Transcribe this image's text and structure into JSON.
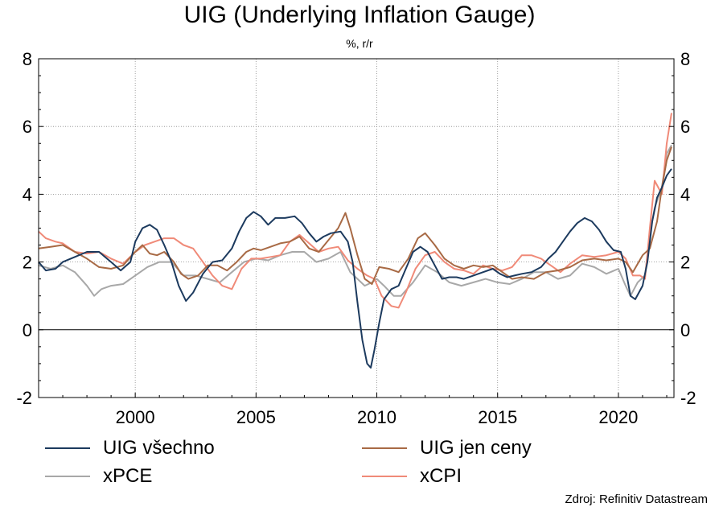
{
  "chart_data": {
    "type": "line",
    "title": "UIG (Underlying Inflation Gauge)",
    "subtitle": "%, r/r",
    "source": "Zdroj: Refinitiv Datastream",
    "xlim": [
      1996.0,
      2022.3
    ],
    "ylim": [
      -2,
      8
    ],
    "y_ticks": [
      -2,
      0,
      2,
      4,
      6,
      8
    ],
    "x_ticks": [
      2000,
      2005,
      2010,
      2015,
      2020
    ],
    "grid": true,
    "legend_position": "bottom",
    "series": [
      {
        "name": "UIG všechno",
        "color": "#1c3a5e",
        "points": [
          [
            1996.0,
            2.0
          ],
          [
            1996.3,
            1.75
          ],
          [
            1996.7,
            1.8
          ],
          [
            1997.0,
            2.0
          ],
          [
            1997.5,
            2.15
          ],
          [
            1998.0,
            2.3
          ],
          [
            1998.5,
            2.3
          ],
          [
            1999.0,
            2.0
          ],
          [
            1999.4,
            1.75
          ],
          [
            1999.8,
            2.0
          ],
          [
            2000.0,
            2.6
          ],
          [
            2000.3,
            3.0
          ],
          [
            2000.6,
            3.1
          ],
          [
            2000.9,
            2.95
          ],
          [
            2001.2,
            2.5
          ],
          [
            2001.5,
            2.0
          ],
          [
            2001.8,
            1.3
          ],
          [
            2002.1,
            0.85
          ],
          [
            2002.4,
            1.1
          ],
          [
            2002.8,
            1.65
          ],
          [
            2003.2,
            2.0
          ],
          [
            2003.6,
            2.05
          ],
          [
            2004.0,
            2.4
          ],
          [
            2004.3,
            2.9
          ],
          [
            2004.6,
            3.3
          ],
          [
            2004.9,
            3.48
          ],
          [
            2005.2,
            3.35
          ],
          [
            2005.5,
            3.1
          ],
          [
            2005.8,
            3.3
          ],
          [
            2006.2,
            3.3
          ],
          [
            2006.6,
            3.35
          ],
          [
            2006.9,
            3.15
          ],
          [
            2007.2,
            2.85
          ],
          [
            2007.5,
            2.6
          ],
          [
            2007.8,
            2.75
          ],
          [
            2008.1,
            2.85
          ],
          [
            2008.5,
            2.9
          ],
          [
            2008.8,
            2.6
          ],
          [
            2009.0,
            2.0
          ],
          [
            2009.2,
            0.8
          ],
          [
            2009.4,
            -0.3
          ],
          [
            2009.6,
            -1.0
          ],
          [
            2009.75,
            -1.12
          ],
          [
            2009.9,
            -0.6
          ],
          [
            2010.1,
            0.2
          ],
          [
            2010.3,
            0.9
          ],
          [
            2010.6,
            1.2
          ],
          [
            2010.9,
            1.3
          ],
          [
            2011.2,
            1.8
          ],
          [
            2011.5,
            2.3
          ],
          [
            2011.8,
            2.45
          ],
          [
            2012.1,
            2.3
          ],
          [
            2012.4,
            1.9
          ],
          [
            2012.7,
            1.5
          ],
          [
            2013.0,
            1.55
          ],
          [
            2013.3,
            1.55
          ],
          [
            2013.6,
            1.5
          ],
          [
            2014.0,
            1.6
          ],
          [
            2014.4,
            1.7
          ],
          [
            2014.8,
            1.8
          ],
          [
            2015.1,
            1.65
          ],
          [
            2015.4,
            1.55
          ],
          [
            2015.7,
            1.6
          ],
          [
            2016.0,
            1.65
          ],
          [
            2016.4,
            1.7
          ],
          [
            2016.8,
            1.85
          ],
          [
            2017.1,
            2.1
          ],
          [
            2017.4,
            2.3
          ],
          [
            2017.7,
            2.6
          ],
          [
            2018.0,
            2.9
          ],
          [
            2018.3,
            3.15
          ],
          [
            2018.6,
            3.3
          ],
          [
            2018.9,
            3.2
          ],
          [
            2019.2,
            2.95
          ],
          [
            2019.5,
            2.6
          ],
          [
            2019.8,
            2.35
          ],
          [
            2020.1,
            2.3
          ],
          [
            2020.3,
            1.8
          ],
          [
            2020.5,
            1.0
          ],
          [
            2020.7,
            0.9
          ],
          [
            2021.0,
            1.3
          ],
          [
            2021.2,
            2.0
          ],
          [
            2021.4,
            3.2
          ],
          [
            2021.6,
            3.9
          ],
          [
            2021.8,
            4.2
          ],
          [
            2022.0,
            4.55
          ],
          [
            2022.2,
            4.75
          ]
        ]
      },
      {
        "name": "UIG jen ceny",
        "color": "#a86a45",
        "points": [
          [
            1996.0,
            2.4
          ],
          [
            1996.5,
            2.45
          ],
          [
            1997.0,
            2.5
          ],
          [
            1997.5,
            2.3
          ],
          [
            1998.0,
            2.1
          ],
          [
            1998.5,
            1.85
          ],
          [
            1999.0,
            1.8
          ],
          [
            1999.5,
            1.9
          ],
          [
            2000.0,
            2.3
          ],
          [
            2000.3,
            2.5
          ],
          [
            2000.6,
            2.25
          ],
          [
            2000.9,
            2.2
          ],
          [
            2001.2,
            2.3
          ],
          [
            2001.6,
            2.0
          ],
          [
            2001.9,
            1.65
          ],
          [
            2002.2,
            1.5
          ],
          [
            2002.6,
            1.6
          ],
          [
            2003.0,
            1.9
          ],
          [
            2003.4,
            1.9
          ],
          [
            2003.8,
            1.75
          ],
          [
            2004.2,
            2.0
          ],
          [
            2004.6,
            2.3
          ],
          [
            2004.9,
            2.4
          ],
          [
            2005.2,
            2.35
          ],
          [
            2005.6,
            2.45
          ],
          [
            2006.0,
            2.55
          ],
          [
            2006.4,
            2.6
          ],
          [
            2006.8,
            2.75
          ],
          [
            2007.2,
            2.4
          ],
          [
            2007.6,
            2.3
          ],
          [
            2008.0,
            2.65
          ],
          [
            2008.4,
            3.0
          ],
          [
            2008.7,
            3.45
          ],
          [
            2008.9,
            3.0
          ],
          [
            2009.2,
            2.2
          ],
          [
            2009.5,
            1.5
          ],
          [
            2009.8,
            1.35
          ],
          [
            2010.1,
            1.85
          ],
          [
            2010.5,
            1.8
          ],
          [
            2010.9,
            1.7
          ],
          [
            2011.3,
            2.1
          ],
          [
            2011.7,
            2.7
          ],
          [
            2012.0,
            2.85
          ],
          [
            2012.4,
            2.5
          ],
          [
            2012.8,
            2.1
          ],
          [
            2013.2,
            1.9
          ],
          [
            2013.6,
            1.8
          ],
          [
            2014.0,
            1.9
          ],
          [
            2014.4,
            1.85
          ],
          [
            2014.8,
            1.9
          ],
          [
            2015.2,
            1.7
          ],
          [
            2015.6,
            1.5
          ],
          [
            2016.0,
            1.55
          ],
          [
            2016.5,
            1.5
          ],
          [
            2017.0,
            1.7
          ],
          [
            2017.5,
            1.75
          ],
          [
            2018.0,
            1.85
          ],
          [
            2018.5,
            2.05
          ],
          [
            2019.0,
            2.1
          ],
          [
            2019.5,
            2.05
          ],
          [
            2020.0,
            2.1
          ],
          [
            2020.3,
            2.0
          ],
          [
            2020.6,
            1.7
          ],
          [
            2021.0,
            2.2
          ],
          [
            2021.3,
            2.4
          ],
          [
            2021.6,
            3.2
          ],
          [
            2021.8,
            4.2
          ],
          [
            2022.0,
            5.0
          ],
          [
            2022.2,
            5.4
          ]
        ]
      },
      {
        "name": "xPCE",
        "color": "#a8a8a8",
        "points": [
          [
            1996.0,
            1.9
          ],
          [
            1996.5,
            1.8
          ],
          [
            1997.0,
            1.9
          ],
          [
            1997.5,
            1.7
          ],
          [
            1998.0,
            1.3
          ],
          [
            1998.3,
            1.0
          ],
          [
            1998.6,
            1.2
          ],
          [
            1999.0,
            1.3
          ],
          [
            1999.5,
            1.35
          ],
          [
            2000.0,
            1.6
          ],
          [
            2000.5,
            1.85
          ],
          [
            2001.0,
            2.0
          ],
          [
            2001.5,
            2.0
          ],
          [
            2002.0,
            1.6
          ],
          [
            2002.5,
            1.6
          ],
          [
            2003.0,
            1.5
          ],
          [
            2003.5,
            1.4
          ],
          [
            2004.0,
            1.7
          ],
          [
            2004.5,
            2.0
          ],
          [
            2005.0,
            2.1
          ],
          [
            2005.5,
            2.05
          ],
          [
            2006.0,
            2.2
          ],
          [
            2006.5,
            2.3
          ],
          [
            2007.0,
            2.3
          ],
          [
            2007.5,
            2.0
          ],
          [
            2008.0,
            2.1
          ],
          [
            2008.5,
            2.3
          ],
          [
            2008.9,
            1.7
          ],
          [
            2009.2,
            1.5
          ],
          [
            2009.5,
            1.3
          ],
          [
            2009.8,
            1.4
          ],
          [
            2010.0,
            1.5
          ],
          [
            2010.3,
            1.3
          ],
          [
            2010.7,
            1.0
          ],
          [
            2011.0,
            1.0
          ],
          [
            2011.5,
            1.4
          ],
          [
            2012.0,
            1.9
          ],
          [
            2012.5,
            1.7
          ],
          [
            2013.0,
            1.4
          ],
          [
            2013.5,
            1.3
          ],
          [
            2014.0,
            1.4
          ],
          [
            2014.5,
            1.5
          ],
          [
            2015.0,
            1.4
          ],
          [
            2015.5,
            1.35
          ],
          [
            2016.0,
            1.5
          ],
          [
            2016.5,
            1.7
          ],
          [
            2017.0,
            1.7
          ],
          [
            2017.5,
            1.5
          ],
          [
            2018.0,
            1.6
          ],
          [
            2018.5,
            1.95
          ],
          [
            2019.0,
            1.85
          ],
          [
            2019.5,
            1.65
          ],
          [
            2020.0,
            1.8
          ],
          [
            2020.3,
            1.3
          ],
          [
            2020.5,
            1.0
          ],
          [
            2020.8,
            1.4
          ],
          [
            2021.1,
            1.6
          ],
          [
            2021.3,
            2.8
          ],
          [
            2021.5,
            3.6
          ],
          [
            2021.8,
            4.2
          ],
          [
            2022.0,
            5.2
          ],
          [
            2022.2,
            5.45
          ]
        ]
      },
      {
        "name": "xCPI",
        "color": "#f08a78",
        "points": [
          [
            1996.0,
            2.9
          ],
          [
            1996.3,
            2.7
          ],
          [
            1996.7,
            2.6
          ],
          [
            1997.0,
            2.55
          ],
          [
            1997.5,
            2.3
          ],
          [
            1998.0,
            2.25
          ],
          [
            1998.5,
            2.3
          ],
          [
            1999.0,
            2.1
          ],
          [
            1999.5,
            1.95
          ],
          [
            2000.0,
            2.3
          ],
          [
            2000.4,
            2.5
          ],
          [
            2000.8,
            2.6
          ],
          [
            2001.2,
            2.7
          ],
          [
            2001.6,
            2.7
          ],
          [
            2002.0,
            2.5
          ],
          [
            2002.4,
            2.4
          ],
          [
            2002.8,
            2.0
          ],
          [
            2003.2,
            1.6
          ],
          [
            2003.6,
            1.3
          ],
          [
            2004.0,
            1.2
          ],
          [
            2004.4,
            1.8
          ],
          [
            2004.8,
            2.1
          ],
          [
            2005.2,
            2.1
          ],
          [
            2005.6,
            2.15
          ],
          [
            2006.0,
            2.2
          ],
          [
            2006.4,
            2.6
          ],
          [
            2006.8,
            2.8
          ],
          [
            2007.2,
            2.55
          ],
          [
            2007.6,
            2.3
          ],
          [
            2008.0,
            2.4
          ],
          [
            2008.4,
            2.45
          ],
          [
            2008.8,
            2.05
          ],
          [
            2009.2,
            1.8
          ],
          [
            2009.6,
            1.6
          ],
          [
            2009.9,
            1.5
          ],
          [
            2010.2,
            1.0
          ],
          [
            2010.6,
            0.7
          ],
          [
            2010.9,
            0.65
          ],
          [
            2011.2,
            1.1
          ],
          [
            2011.6,
            1.8
          ],
          [
            2012.0,
            2.2
          ],
          [
            2012.4,
            2.3
          ],
          [
            2012.8,
            2.0
          ],
          [
            2013.2,
            1.8
          ],
          [
            2013.6,
            1.75
          ],
          [
            2014.0,
            1.65
          ],
          [
            2014.4,
            1.9
          ],
          [
            2014.8,
            1.8
          ],
          [
            2015.2,
            1.75
          ],
          [
            2015.6,
            1.85
          ],
          [
            2016.0,
            2.2
          ],
          [
            2016.4,
            2.2
          ],
          [
            2016.8,
            2.1
          ],
          [
            2017.2,
            1.9
          ],
          [
            2017.6,
            1.7
          ],
          [
            2018.0,
            1.95
          ],
          [
            2018.5,
            2.2
          ],
          [
            2019.0,
            2.15
          ],
          [
            2019.5,
            2.2
          ],
          [
            2020.0,
            2.3
          ],
          [
            2020.3,
            2.1
          ],
          [
            2020.6,
            1.6
          ],
          [
            2020.9,
            1.6
          ],
          [
            2021.1,
            1.5
          ],
          [
            2021.3,
            3.0
          ],
          [
            2021.5,
            4.4
          ],
          [
            2021.8,
            4.0
          ],
          [
            2022.0,
            5.5
          ],
          [
            2022.2,
            6.4
          ]
        ]
      }
    ]
  }
}
